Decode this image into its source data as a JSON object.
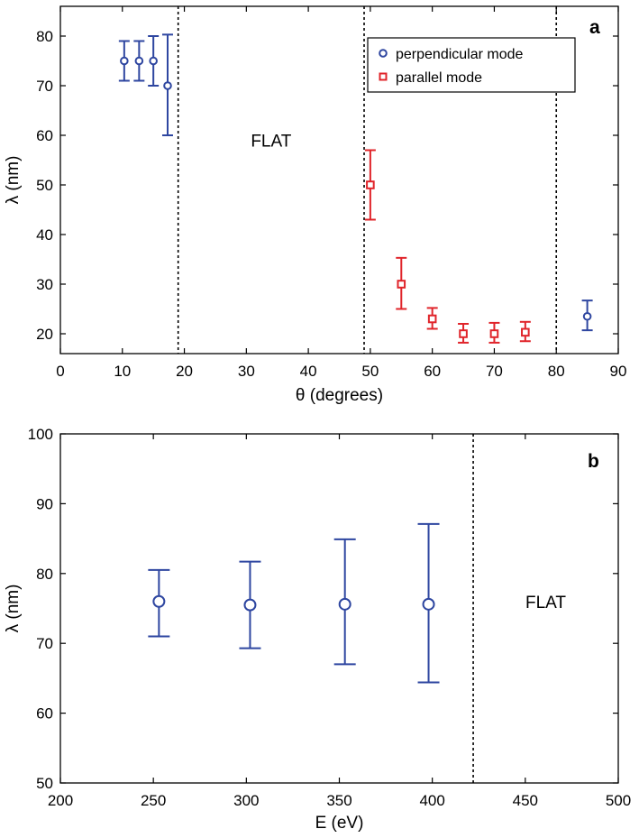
{
  "colors": {
    "blue": "#2e46a0",
    "red": "#e0242a"
  },
  "chart_data": [
    {
      "type": "scatter",
      "panel_letter": "a",
      "xlabel": "θ (degrees)",
      "ylabel": "λ (nm)",
      "xlim": [
        0,
        90
      ],
      "ylim": [
        16,
        86
      ],
      "xticks": [
        0,
        10,
        20,
        30,
        40,
        50,
        60,
        70,
        80,
        90
      ],
      "yticks": [
        20,
        30,
        40,
        50,
        60,
        70,
        80
      ],
      "vlines": [
        19,
        49,
        80
      ],
      "region_labels": [
        {
          "text": "FLAT",
          "x": 34,
          "y": 59
        }
      ],
      "legend": {
        "placement": "top-right"
      },
      "series": [
        {
          "name": "perpendicular mode",
          "marker": "circle",
          "color": "#2e46a0",
          "points": [
            {
              "x": 10.3,
              "y": 75,
              "lo": 71,
              "hi": 79
            },
            {
              "x": 12.7,
              "y": 75,
              "lo": 71,
              "hi": 79
            },
            {
              "x": 15,
              "y": 75,
              "lo": 70,
              "hi": 80
            },
            {
              "x": 17.3,
              "y": 70,
              "lo": 60,
              "hi": 80.3
            },
            {
              "x": 85,
              "y": 23.5,
              "lo": 20.7,
              "hi": 26.7
            }
          ]
        },
        {
          "name": "parallel mode",
          "marker": "square",
          "color": "#e0242a",
          "points": [
            {
              "x": 50,
              "y": 50,
              "lo": 43,
              "hi": 57
            },
            {
              "x": 55,
              "y": 30,
              "lo": 25,
              "hi": 35.3
            },
            {
              "x": 60,
              "y": 23,
              "lo": 21,
              "hi": 25.2
            },
            {
              "x": 65,
              "y": 20,
              "lo": 18.2,
              "hi": 22
            },
            {
              "x": 70,
              "y": 20,
              "lo": 18.2,
              "hi": 22.2
            },
            {
              "x": 75,
              "y": 20.3,
              "lo": 18.5,
              "hi": 22.4
            }
          ]
        }
      ]
    },
    {
      "type": "scatter",
      "panel_letter": "b",
      "xlabel": "E (eV)",
      "ylabel": "λ (nm)",
      "xlim": [
        200,
        500
      ],
      "ylim": [
        50,
        100
      ],
      "xticks": [
        200,
        250,
        300,
        350,
        400,
        450,
        500
      ],
      "yticks": [
        50,
        60,
        70,
        80,
        90,
        100
      ],
      "vlines": [
        422
      ],
      "region_labels": [
        {
          "text": "FLAT",
          "x": 461,
          "y": 76
        }
      ],
      "series": [
        {
          "name": "",
          "marker": "circle",
          "color": "#2e46a0",
          "points": [
            {
              "x": 253,
              "y": 76,
              "lo": 71,
              "hi": 80.5
            },
            {
              "x": 302,
              "y": 75.5,
              "lo": 69.3,
              "hi": 81.7
            },
            {
              "x": 353,
              "y": 75.6,
              "lo": 67,
              "hi": 84.9
            },
            {
              "x": 398,
              "y": 75.6,
              "lo": 64.4,
              "hi": 87.1
            }
          ]
        }
      ]
    }
  ]
}
